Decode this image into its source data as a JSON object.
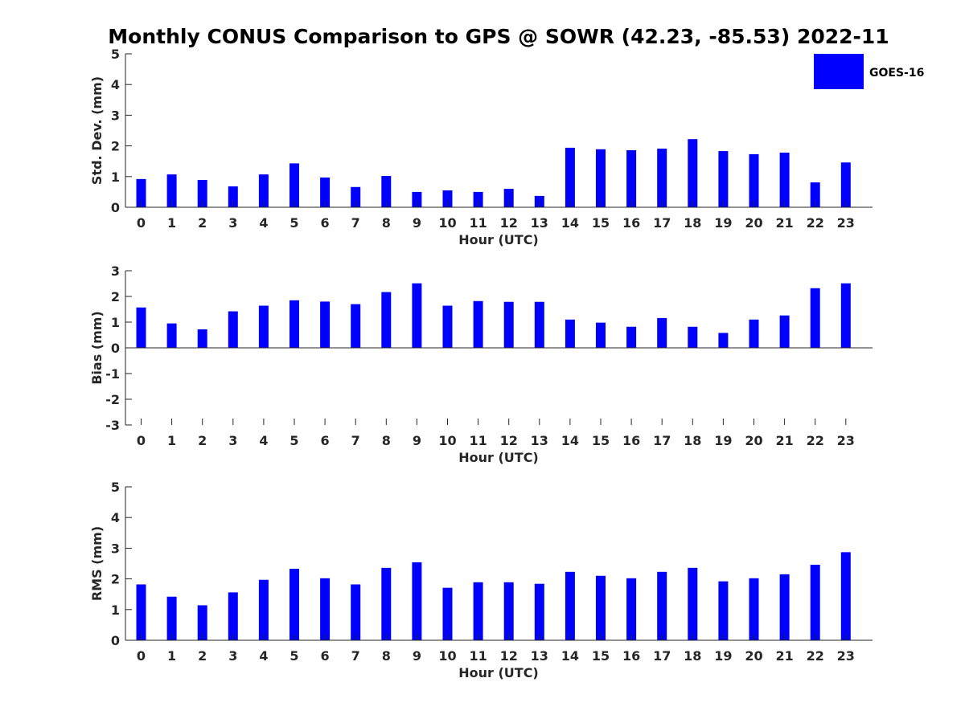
{
  "figure_title": "Monthly CONUS Comparison to GPS @ SOWR (42.23, -85.53) 2022-11",
  "legend": {
    "label": "GOES-16",
    "color": "#0000ff",
    "placement": "top-right"
  },
  "chart_data": [
    {
      "type": "bar",
      "xlabel": "Hour (UTC)",
      "ylabel": "Std. Dev. (mm)",
      "ylim": [
        0,
        5
      ],
      "yticks": [
        0,
        1,
        2,
        3,
        4,
        5
      ],
      "categories": [
        "0",
        "1",
        "2",
        "3",
        "4",
        "5",
        "6",
        "7",
        "8",
        "9",
        "10",
        "11",
        "12",
        "13",
        "14",
        "15",
        "16",
        "17",
        "18",
        "19",
        "20",
        "21",
        "22",
        "23"
      ],
      "series": [
        {
          "name": "GOES-16",
          "color": "#0000ff",
          "values": [
            0.92,
            1.07,
            0.89,
            0.68,
            1.07,
            1.43,
            0.97,
            0.66,
            1.02,
            0.5,
            0.55,
            0.5,
            0.6,
            0.37,
            1.94,
            1.89,
            1.86,
            1.91,
            2.22,
            1.83,
            1.73,
            1.78,
            0.81,
            1.46
          ]
        }
      ]
    },
    {
      "type": "bar",
      "xlabel": "Hour (UTC)",
      "ylabel": "Bias (mm)",
      "ylim": [
        -3,
        3
      ],
      "yticks": [
        -3,
        -2,
        -1,
        0,
        1,
        2,
        3
      ],
      "categories": [
        "0",
        "1",
        "2",
        "3",
        "4",
        "5",
        "6",
        "7",
        "8",
        "9",
        "10",
        "11",
        "12",
        "13",
        "14",
        "15",
        "16",
        "17",
        "18",
        "19",
        "20",
        "21",
        "22",
        "23"
      ],
      "series": [
        {
          "name": "GOES-16",
          "color": "#0000ff",
          "values": [
            1.57,
            0.95,
            0.72,
            1.42,
            1.64,
            1.85,
            1.8,
            1.7,
            2.17,
            2.51,
            1.64,
            1.82,
            1.79,
            1.79,
            1.1,
            0.98,
            0.82,
            1.16,
            0.82,
            0.58,
            1.1,
            1.26,
            2.32,
            2.51
          ]
        }
      ]
    },
    {
      "type": "bar",
      "xlabel": "Hour (UTC)",
      "ylabel": "RMS (mm)",
      "ylim": [
        0,
        5
      ],
      "yticks": [
        0,
        1,
        2,
        3,
        4,
        5
      ],
      "categories": [
        "0",
        "1",
        "2",
        "3",
        "4",
        "5",
        "6",
        "7",
        "8",
        "9",
        "10",
        "11",
        "12",
        "13",
        "14",
        "15",
        "16",
        "17",
        "18",
        "19",
        "20",
        "21",
        "22",
        "23"
      ],
      "series": [
        {
          "name": "GOES-16",
          "color": "#0000ff",
          "values": [
            1.82,
            1.42,
            1.14,
            1.56,
            1.97,
            2.33,
            2.02,
            1.82,
            2.36,
            2.54,
            1.71,
            1.89,
            1.89,
            1.84,
            2.23,
            2.1,
            2.02,
            2.23,
            2.36,
            1.92,
            2.02,
            2.15,
            2.46,
            2.87
          ]
        }
      ]
    }
  ]
}
